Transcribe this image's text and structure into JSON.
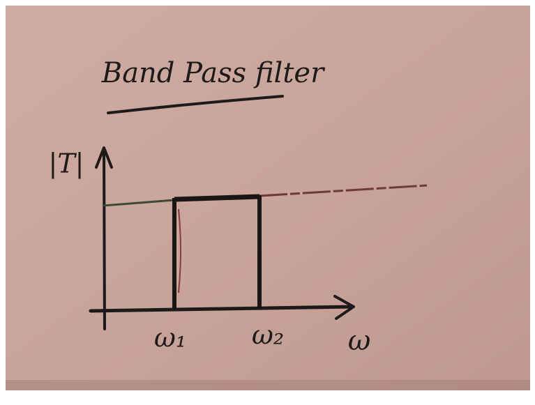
{
  "title": "Band Pass filter",
  "y_axis_label": "|T|",
  "x_axis_label": "ω",
  "markers": [
    "ω₁",
    "ω₂"
  ]
}
